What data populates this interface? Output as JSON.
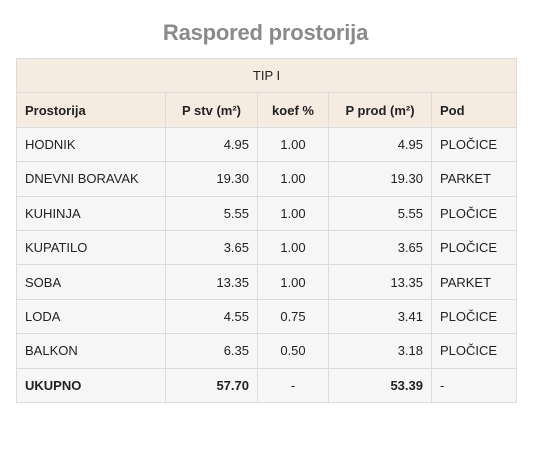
{
  "title": "Raspored prostorija",
  "table": {
    "type_label": "TIP I",
    "headers": {
      "room": "Prostorija",
      "area_gross": "P stv (m²)",
      "coef": "koef %",
      "area_net": "P prod (m²)",
      "floor": "Pod"
    },
    "rows": [
      {
        "room": "HODNIK",
        "area_gross": "4.95",
        "coef": "1.00",
        "area_net": "4.95",
        "floor": "PLOČICE"
      },
      {
        "room": "DNEVNI BORAVAK",
        "area_gross": "19.30",
        "coef": "1.00",
        "area_net": "19.30",
        "floor": "PARKET"
      },
      {
        "room": "KUHINJA",
        "area_gross": "5.55",
        "coef": "1.00",
        "area_net": "5.55",
        "floor": "PLOČICE"
      },
      {
        "room": "KUPATILO",
        "area_gross": "3.65",
        "coef": "1.00",
        "area_net": "3.65",
        "floor": "PLOČICE"
      },
      {
        "room": "SOBA",
        "area_gross": "13.35",
        "coef": "1.00",
        "area_net": "13.35",
        "floor": "PARKET"
      },
      {
        "room": "LODA",
        "area_gross": "4.55",
        "coef": "0.75",
        "area_net": "3.41",
        "floor": "PLOČICE"
      },
      {
        "room": "BALKON",
        "area_gross": "6.35",
        "coef": "0.50",
        "area_net": "3.18",
        "floor": "PLOČICE"
      }
    ],
    "total": {
      "room": "UKUPNO",
      "area_gross": "57.70",
      "coef": "-",
      "area_net": "53.39",
      "floor": "-"
    }
  }
}
